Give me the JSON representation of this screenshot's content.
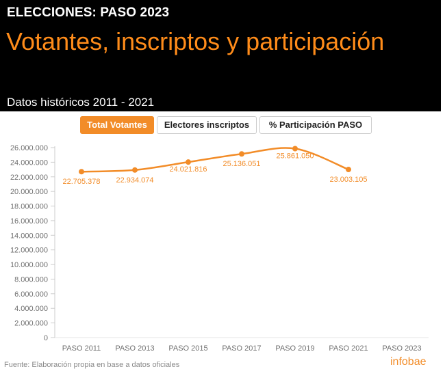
{
  "header": {
    "kicker": "ELECCIONES: PASO 2023",
    "title": "Votantes, inscriptos y participación",
    "subtitle": "Datos históricos 2011 - 2021"
  },
  "tabs": [
    {
      "label": "Total Votantes",
      "active": true
    },
    {
      "label": "Electores inscriptos",
      "active": false
    },
    {
      "label": "% Participación PASO",
      "active": false
    }
  ],
  "chart_data": {
    "type": "line",
    "categories": [
      "PASO 2011",
      "PASO 2013",
      "PASO 2015",
      "PASO 2017",
      "PASO 2019",
      "PASO 2021",
      "PASO 2023"
    ],
    "series": [
      {
        "values": [
          22705378,
          22934074,
          24021816,
          25136051,
          25861050,
          23003105,
          null
        ],
        "labels": [
          "22.705.378",
          "22.934.074",
          "24.021.816",
          "25.136.051",
          "25.861.050",
          "23.003.105",
          ""
        ]
      }
    ],
    "ylim": [
      0,
      26000000
    ],
    "yticks": [
      0,
      2000000,
      4000000,
      6000000,
      8000000,
      10000000,
      12000000,
      14000000,
      16000000,
      18000000,
      20000000,
      22000000,
      24000000,
      26000000
    ],
    "ytick_labels": [
      "0",
      "2.000.000",
      "4.000.000",
      "6.000.000",
      "8.000.000",
      "10.000.000",
      "12.000.000",
      "14.000.000",
      "16.000.000",
      "18.000.000",
      "20.000.000",
      "22.000.000",
      "24.000.000",
      "26.000.000"
    ],
    "grid": false,
    "color": "#f28c28"
  },
  "footer": {
    "source": "Fuente: Elaboración propia en base a datos oficiales",
    "brand": "infobae"
  }
}
